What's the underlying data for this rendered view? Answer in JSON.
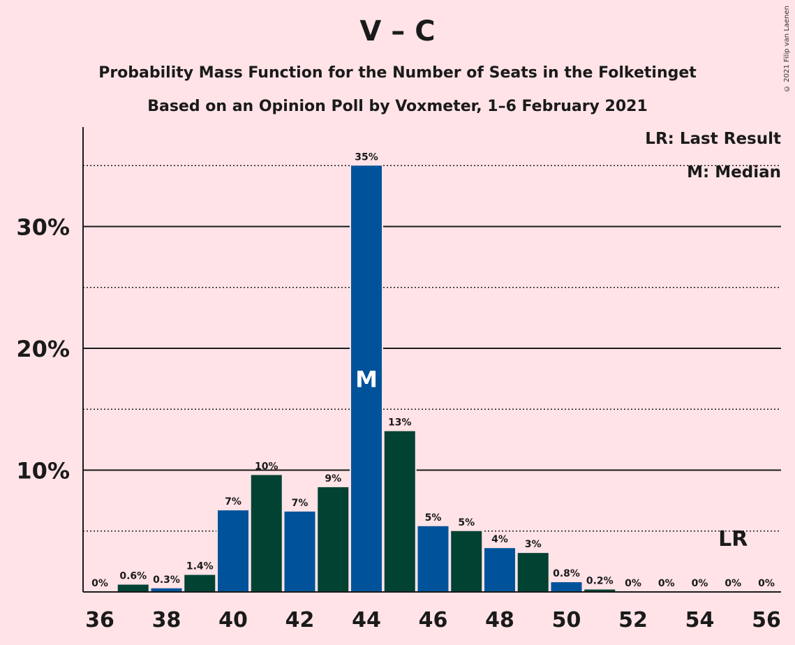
{
  "chart_data": {
    "type": "bar",
    "title": "V – C",
    "subtitle": "Probability Mass Function for the Number of Seats in the Folketinget",
    "subtitle2": "Based on an Opinion Poll by Voxmeter, 1–6 February 2021",
    "copyright": "© 2021 Filip van Laenen",
    "legend": {
      "placement": "top-right",
      "lr": "LR: Last Result",
      "median": "M: Median"
    },
    "x": [
      36,
      37,
      38,
      39,
      40,
      41,
      42,
      43,
      44,
      45,
      46,
      47,
      48,
      49,
      50,
      51,
      52,
      53,
      54,
      55,
      56
    ],
    "values": [
      0,
      0.6,
      0.3,
      1.4,
      6.7,
      9.6,
      6.6,
      8.6,
      35.0,
      13.2,
      5.4,
      5.0,
      3.6,
      3.2,
      0.8,
      0.2,
      0,
      0,
      0,
      0,
      0
    ],
    "data_labels": [
      "0%",
      "0.6%",
      "0.3%",
      "1.4%",
      "7%",
      "10%",
      "7%",
      "9%",
      "35%",
      "13%",
      "5%",
      "5%",
      "4%",
      "3%",
      "0.8%",
      "0.2%",
      "0%",
      "0%",
      "0%",
      "0%",
      "0%"
    ],
    "xticks": [
      "36",
      "38",
      "40",
      "42",
      "44",
      "46",
      "48",
      "50",
      "52",
      "54",
      "56"
    ],
    "yticks": [
      {
        "value": 10,
        "label": "10%"
      },
      {
        "value": 20,
        "label": "20%"
      },
      {
        "value": 30,
        "label": "30%"
      }
    ],
    "minor_gridlines": [
      5,
      15,
      25,
      35
    ],
    "ylim": [
      0,
      38
    ],
    "median": {
      "x": 44,
      "label": "M"
    },
    "last_result": {
      "x": 55,
      "label": "LR"
    },
    "colors": {
      "odd": "#00539A",
      "even": "#024233",
      "background": "#FFE3E7"
    },
    "grid": true
  }
}
